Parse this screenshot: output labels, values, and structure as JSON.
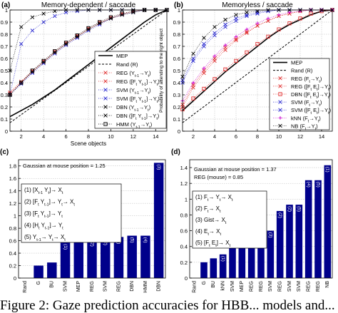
{
  "caption": "Figure 2: Gaze prediction accuracies for HBB... models and...",
  "chart_data": [
    {
      "panel": "(a)",
      "title": "Memory-dependent / saccade",
      "type": "line",
      "xlabel": "Scene objects",
      "ylabel": "",
      "xlim": [
        1,
        15
      ],
      "ylim": [
        0,
        1
      ],
      "xticks": [
        2,
        4,
        6,
        8,
        10,
        12,
        14
      ],
      "yticks": [
        0,
        0.1,
        0.2,
        0.3,
        0.4,
        0.5,
        0.6,
        0.7,
        0.8,
        0.9,
        1
      ],
      "grid": true,
      "legend_position": "bottom-right",
      "series": [
        {
          "name": "MEP",
          "color": "#000000",
          "style": "solid-thick",
          "marker": "",
          "x": [
            1,
            2,
            3,
            4,
            5,
            6,
            7,
            8,
            9,
            10,
            11,
            12,
            13,
            14,
            15
          ],
          "y": [
            0.12,
            0.17,
            0.22,
            0.28,
            0.34,
            0.41,
            0.48,
            0.55,
            0.62,
            0.69,
            0.76,
            0.83,
            0.9,
            0.96,
            1.0
          ]
        },
        {
          "name": "Rand (R)",
          "color": "#000000",
          "style": "dashed",
          "marker": "",
          "x": [
            1,
            15
          ],
          "y": [
            0.07,
            1.0
          ]
        },
        {
          "name": "REG (Y_{t-1}→Y_t)",
          "color": "#e03030",
          "style": "dotted",
          "marker": "x",
          "x": [
            1,
            2,
            3,
            4,
            5,
            6,
            7,
            8,
            9,
            10,
            11,
            12,
            13,
            14,
            15
          ],
          "y": [
            0.32,
            0.41,
            0.5,
            0.58,
            0.66,
            0.73,
            0.79,
            0.85,
            0.9,
            0.94,
            0.97,
            0.99,
            1,
            1,
            1
          ]
        },
        {
          "name": "REG ([F_t Y_{t-1}]→Y_t)",
          "color": "#e03030",
          "style": "dotted",
          "marker": "x",
          "x": [
            1,
            2,
            3,
            4,
            5,
            6,
            7,
            8,
            9,
            10,
            11,
            12,
            13,
            14,
            15
          ],
          "y": [
            0.31,
            0.4,
            0.49,
            0.57,
            0.65,
            0.72,
            0.78,
            0.84,
            0.89,
            0.93,
            0.96,
            0.99,
            1,
            1,
            1
          ]
        },
        {
          "name": "SVM (Y_{t-1}→Y_t)",
          "color": "#2a2ad0",
          "style": "dotted",
          "marker": "x",
          "x": [
            1,
            2,
            3,
            4,
            5,
            6,
            7,
            8,
            9,
            10,
            11,
            12,
            13,
            14,
            15
          ],
          "y": [
            0.3,
            0.39,
            0.48,
            0.56,
            0.64,
            0.71,
            0.77,
            0.83,
            0.88,
            0.93,
            0.96,
            0.98,
            1,
            1,
            1
          ]
        },
        {
          "name": "SVM ([F_t Y_{t-1}]→Y_t)",
          "color": "#2a2ad0",
          "style": "dotted",
          "marker": "x",
          "x": [
            1,
            2,
            3,
            4,
            5,
            6,
            7,
            8,
            9,
            10,
            11,
            12,
            13,
            14,
            15
          ],
          "y": [
            0.3,
            0.72,
            0.83,
            0.9,
            0.95,
            0.98,
            0.99,
            1,
            1,
            1,
            1,
            1,
            1,
            1,
            1
          ]
        },
        {
          "name": "DBN (Y_{t-1}→Y_t)",
          "color": "#000000",
          "style": "dotted",
          "marker": "x",
          "x": [
            1,
            2,
            3,
            4,
            5,
            6,
            7,
            8,
            9,
            10,
            11,
            12,
            13,
            14,
            15
          ],
          "y": [
            0.3,
            0.4,
            0.49,
            0.57,
            0.65,
            0.72,
            0.78,
            0.84,
            0.89,
            0.93,
            0.96,
            0.98,
            1,
            1,
            1
          ]
        },
        {
          "name": "DBN ([F_t Y_{t-1}]→Y_t)",
          "color": "#000000",
          "style": "dotted",
          "marker": "x",
          "x": [
            1,
            2,
            3,
            4,
            5,
            6,
            7,
            8,
            9,
            10,
            11,
            12,
            13,
            14,
            15
          ],
          "y": [
            0.5,
            0.86,
            0.94,
            0.97,
            0.99,
            1,
            1,
            1,
            1,
            1,
            1,
            1,
            1,
            1,
            1
          ]
        },
        {
          "name": "HMM (Y_{t-1}→Y_t)",
          "color": "#000000",
          "style": "dotted",
          "marker": "square",
          "x": [
            1,
            2,
            3,
            4,
            5,
            6,
            7,
            8,
            9,
            10,
            11,
            12,
            13,
            14,
            15
          ],
          "y": [
            0.3,
            0.4,
            0.5,
            0.58,
            0.66,
            0.73,
            0.79,
            0.85,
            0.9,
            0.94,
            0.97,
            0.99,
            1,
            1,
            1
          ]
        }
      ]
    },
    {
      "panel": "(b)",
      "title": "Memoryless / saccade",
      "type": "line",
      "xlabel": "",
      "ylabel": "Probability of attending to the right object",
      "xlim": [
        1,
        15
      ],
      "ylim": [
        0,
        1
      ],
      "xticks": [
        2,
        4,
        6,
        8,
        10,
        12,
        14
      ],
      "yticks": [
        0,
        0.1,
        0.2,
        0.3,
        0.4,
        0.5,
        0.6,
        0.7,
        0.8,
        0.9,
        1
      ],
      "grid": true,
      "legend_position": "bottom-right",
      "series": [
        {
          "name": "MEP",
          "color": "#000000",
          "style": "solid-thick",
          "marker": "",
          "x": [
            1,
            2,
            3,
            4,
            5,
            6,
            7,
            8,
            9,
            10,
            11,
            12,
            13,
            14,
            15
          ],
          "y": [
            0.17,
            0.25,
            0.33,
            0.41,
            0.49,
            0.56,
            0.63,
            0.7,
            0.77,
            0.83,
            0.88,
            0.92,
            0.96,
            0.99,
            1
          ]
        },
        {
          "name": "Rand (R)",
          "color": "#000000",
          "style": "dashed",
          "marker": "",
          "x": [
            1,
            15
          ],
          "y": [
            0.07,
            1.0
          ]
        },
        {
          "name": "REG (F_t→Y_t)",
          "color": "#e03030",
          "style": "dotted",
          "marker": "x",
          "x": [
            1,
            2,
            3,
            4,
            5,
            6,
            7,
            8,
            9,
            10,
            11,
            12,
            13,
            14,
            15
          ],
          "y": [
            0.2,
            0.36,
            0.48,
            0.58,
            0.67,
            0.75,
            0.81,
            0.87,
            0.91,
            0.95,
            0.97,
            0.99,
            1,
            1,
            1
          ]
        },
        {
          "name": "REG ([F_t E_t]→Y_t)",
          "color": "#e03030",
          "style": "dotted",
          "marker": "x",
          "x": [
            1,
            2,
            3,
            4,
            5,
            6,
            7,
            8,
            9,
            10,
            11,
            12,
            13,
            14,
            15
          ],
          "y": [
            0.22,
            0.38,
            0.5,
            0.6,
            0.69,
            0.76,
            0.82,
            0.87,
            0.91,
            0.95,
            0.97,
            0.99,
            1,
            1,
            1
          ]
        },
        {
          "name": "DBN ([F_t E_t]→Y_t)",
          "color": "#e03030",
          "style": "dotted",
          "marker": "square",
          "x": [
            1,
            2,
            3,
            4,
            5,
            6,
            7,
            8,
            9,
            10,
            11,
            12,
            13,
            14,
            15
          ],
          "y": [
            0.18,
            0.27,
            0.35,
            0.43,
            0.51,
            0.58,
            0.65,
            0.72,
            0.78,
            0.84,
            0.89,
            0.93,
            0.97,
            0.99,
            1
          ]
        },
        {
          "name": "SVM (F_t→Y_t)",
          "color": "#2a2ad0",
          "style": "dotted",
          "marker": "x",
          "x": [
            1,
            2,
            3,
            4,
            5,
            6,
            7,
            8,
            9,
            10,
            11,
            12,
            13,
            14,
            15
          ],
          "y": [
            0.4,
            0.58,
            0.7,
            0.79,
            0.86,
            0.91,
            0.95,
            0.97,
            0.99,
            1,
            1,
            1,
            1,
            1,
            1
          ]
        },
        {
          "name": "SVM ([F_t E_t]→Y_t)",
          "color": "#2a2ad0",
          "style": "dotted",
          "marker": "x",
          "x": [
            1,
            2,
            3,
            4,
            5,
            6,
            7,
            8,
            9,
            10,
            11,
            12,
            13,
            14,
            15
          ],
          "y": [
            0.42,
            0.6,
            0.72,
            0.81,
            0.88,
            0.93,
            0.96,
            0.98,
            0.99,
            1,
            1,
            1,
            1,
            1,
            1
          ]
        },
        {
          "name": "kNN (F_t→Y_t)",
          "color": "#cc00cc",
          "style": "dotted",
          "marker": "plus",
          "x": [
            1,
            2,
            3,
            4,
            5,
            6,
            7,
            8,
            9,
            10,
            11,
            12,
            13,
            14,
            15
          ],
          "y": [
            0.25,
            0.4,
            0.52,
            0.62,
            0.71,
            0.78,
            0.84,
            0.89,
            0.93,
            0.96,
            0.98,
            0.99,
            1,
            1,
            1
          ]
        },
        {
          "name": "NB (F_t→Y_t)",
          "color": "#000000",
          "style": "dotted",
          "marker": "x",
          "x": [
            1,
            2,
            3,
            4,
            5,
            6,
            7,
            8,
            9,
            10,
            11,
            12,
            13,
            14,
            15
          ],
          "y": [
            0.45,
            0.64,
            0.77,
            0.86,
            0.92,
            0.96,
            0.98,
            0.99,
            1,
            1,
            1,
            1,
            1,
            1,
            1
          ]
        }
      ]
    },
    {
      "panel": "(c)",
      "type": "bar",
      "annotation": "Gaussian at mouse position = 1.25",
      "ylim": [
        0,
        1.9
      ],
      "yticks": [
        0,
        0.2,
        0.4,
        0.6,
        0.8,
        1,
        1.2,
        1.4,
        1.6,
        1.8
      ],
      "grid": true,
      "bar_color": "#00008b",
      "categories": [
        "Rand",
        "G",
        "BU",
        "SVM",
        "MEP",
        "REG",
        "SVM",
        "REG",
        "DBN",
        "HMM",
        "DBN"
      ],
      "values": [
        0,
        0.2,
        0.25,
        0.57,
        0.59,
        0.62,
        0.64,
        0.66,
        0.68,
        0.68,
        1.85
      ],
      "bar_labels": [
        "",
        "",
        "",
        "(1)",
        "",
        "(2)",
        "(2)",
        "(3)",
        "(5)",
        "(4)",
        "(3)"
      ],
      "legend_items": [
        "(1) [X_{t-1} Y_t]→ X_t",
        "(2) [F_t Y_{t-1}]→ Y_t→ X_t",
        "(3) [F_t Y_{t-1}]→ Y_t",
        "(4) [H_t Y_{t-1}]→ Y_t",
        "(5) Y_{t-1}→ Y_t→ X_t"
      ]
    },
    {
      "panel": "(d)",
      "type": "bar",
      "annotation": "Gaussian at mouse position = 1.37",
      "annotation2": "REG (mouse) = 0.85",
      "ylim": [
        0,
        1.5
      ],
      "yticks": [
        0,
        0.2,
        0.4,
        0.6,
        0.8,
        1,
        1.2,
        1.4
      ],
      "grid": true,
      "bar_color": "#00008b",
      "categories": [
        "Rand",
        "G",
        "BU",
        "kNN",
        "SVM",
        "MEP",
        "REG",
        "REG",
        "SVM",
        "REG",
        "SVM",
        "SVM",
        "REG",
        "REG",
        "NB"
      ],
      "values": [
        0,
        0.2,
        0.25,
        0.3,
        0.5,
        0.53,
        0.54,
        0.56,
        0.6,
        0.85,
        0.93,
        0.93,
        1.24,
        1.24,
        1.43
      ],
      "bar_labels": [
        "",
        "",
        "",
        "(1)",
        "(1)",
        "",
        "(1)",
        "(3)",
        "(3)",
        "(2)",
        "(2)",
        "(5)",
        "(4)",
        "(5)",
        "(1)"
      ],
      "legend_items": [
        "(1) F_t→ Y_t→ X_t",
        "(2) F_t→ X_t",
        "(3) Gist→ X_t",
        "(4) E_t→ X_t",
        "(5) [F_t E_t]→ X_t"
      ]
    }
  ]
}
